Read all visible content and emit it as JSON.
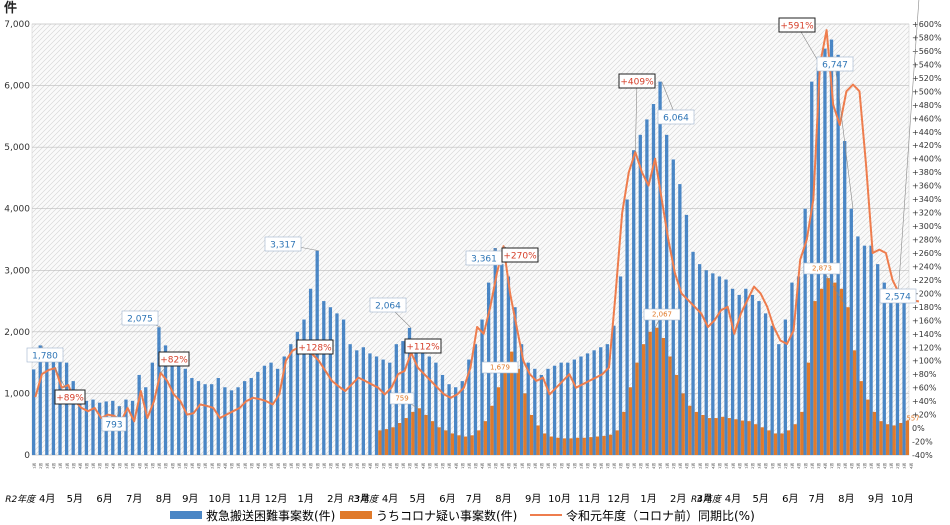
{
  "chart_data": {
    "type": "bar",
    "unit_label": "件",
    "y_left": {
      "min": 0,
      "max": 7000,
      "step": 1000
    },
    "y_right": {
      "min": -40,
      "max": 600,
      "step": 20
    },
    "fiscal_year_labels": [
      "R2年度",
      "R3年度",
      "R4年度"
    ],
    "months": [
      {
        "label": "4月",
        "start": 0,
        "weeks": 4,
        "fy": "R2年度"
      },
      {
        "label": "5月",
        "start": 4,
        "weeks": 5
      },
      {
        "label": "6月",
        "start": 9,
        "weeks": 4
      },
      {
        "label": "7月",
        "start": 13,
        "weeks": 5
      },
      {
        "label": "8月",
        "start": 18,
        "weeks": 4
      },
      {
        "label": "9月",
        "start": 22,
        "weeks": 4
      },
      {
        "label": "10月",
        "start": 26,
        "weeks": 5
      },
      {
        "label": "11月",
        "start": 31,
        "weeks": 4
      },
      {
        "label": "12月",
        "start": 35,
        "weeks": 4
      },
      {
        "label": "1月",
        "start": 39,
        "weeks": 5
      },
      {
        "label": "2月",
        "start": 44,
        "weeks": 4
      },
      {
        "label": "3月",
        "start": 48,
        "weeks": 4
      },
      {
        "label": "4月",
        "start": 52,
        "weeks": 4,
        "fy": "R3年度"
      },
      {
        "label": "5月",
        "start": 56,
        "weeks": 5
      },
      {
        "label": "6月",
        "start": 61,
        "weeks": 4
      },
      {
        "label": "7月",
        "start": 65,
        "weeks": 4
      },
      {
        "label": "8月",
        "start": 69,
        "weeks": 5
      },
      {
        "label": "9月",
        "start": 74,
        "weeks": 4
      },
      {
        "label": "10月",
        "start": 78,
        "weeks": 4
      },
      {
        "label": "11月",
        "start": 82,
        "weeks": 5
      },
      {
        "label": "12月",
        "start": 87,
        "weeks": 4
      },
      {
        "label": "1月",
        "start": 91,
        "weeks": 5
      },
      {
        "label": "2月",
        "start": 96,
        "weeks": 4
      },
      {
        "label": "3月",
        "start": 100,
        "weeks": 4
      },
      {
        "label": "4月",
        "start": 104,
        "weeks": 4,
        "fy": "R4年度"
      },
      {
        "label": "5月",
        "start": 108,
        "weeks": 5
      },
      {
        "label": "6月",
        "start": 113,
        "weeks": 4
      },
      {
        "label": "7月",
        "start": 117,
        "weeks": 4
      },
      {
        "label": "8月",
        "start": 121,
        "weeks": 5
      },
      {
        "label": "9月",
        "start": 126,
        "weeks": 4
      },
      {
        "label": "10月",
        "start": 130,
        "weeks": 4
      }
    ],
    "series": [
      {
        "name": "救急搬送困難事案数(件)",
        "kind": "bar",
        "color": "#4a86c5",
        "axis": "left",
        "values": [
          1390,
          1780,
          1700,
          1650,
          1600,
          1500,
          1200,
          950,
          880,
          900,
          850,
          870,
          880,
          793,
          900,
          880,
          1300,
          1100,
          1500,
          2075,
          1780,
          1650,
          1500,
          1400,
          1250,
          1200,
          1150,
          1150,
          1250,
          1100,
          1050,
          1100,
          1200,
          1250,
          1350,
          1450,
          1500,
          1400,
          1600,
          1800,
          2000,
          2200,
          2700,
          3317,
          2500,
          2400,
          2300,
          2200,
          1800,
          1700,
          1750,
          1650,
          1600,
          1550,
          1500,
          1800,
          1850,
          2064,
          1800,
          1700,
          1600,
          1500,
          1300,
          1150,
          1100,
          1200,
          1550,
          1800,
          2200,
          2800,
          3361,
          3100,
          2900,
          2400,
          1800,
          1500,
          1400,
          1300,
          1400,
          1450,
          1500,
          1500,
          1550,
          1600,
          1650,
          1700,
          1750,
          1800,
          2100,
          2900,
          4150,
          4950,
          5200,
          5450,
          5700,
          6064,
          5200,
          4800,
          4400,
          3900,
          3300,
          3100,
          3000,
          2950,
          2900,
          2850,
          2700,
          2600,
          2700,
          2600,
          2500,
          2300,
          2100,
          1800,
          2200,
          2800,
          2900,
          4000,
          6064,
          6300,
          6600,
          6747,
          6500,
          5100,
          4000,
          3550,
          3400,
          3400,
          3100,
          2800,
          2700,
          2700,
          2574
        ]
      },
      {
        "name": "うちコロナ疑い事案数(件)",
        "kind": "bar",
        "color": "#e07a2a",
        "axis": "left",
        "values": [
          0,
          0,
          0,
          0,
          0,
          0,
          0,
          0,
          0,
          0,
          0,
          0,
          0,
          0,
          0,
          0,
          0,
          0,
          0,
          0,
          0,
          0,
          0,
          0,
          0,
          0,
          0,
          0,
          0,
          0,
          0,
          0,
          0,
          0,
          0,
          0,
          0,
          0,
          0,
          0,
          0,
          0,
          0,
          0,
          0,
          0,
          0,
          0,
          0,
          0,
          0,
          0,
          400,
          420,
          450,
          520,
          600,
          700,
          759,
          650,
          550,
          450,
          400,
          350,
          320,
          300,
          320,
          400,
          550,
          800,
          1100,
          1500,
          1679,
          1400,
          1000,
          650,
          480,
          350,
          300,
          280,
          270,
          270,
          280,
          280,
          290,
          300,
          310,
          330,
          400,
          700,
          1100,
          1500,
          1800,
          2000,
          2067,
          1900,
          1600,
          1300,
          1000,
          800,
          700,
          650,
          600,
          600,
          620,
          600,
          580,
          560,
          550,
          500,
          450,
          400,
          350,
          350,
          400,
          500,
          700,
          1500,
          2500,
          2700,
          2873,
          2800,
          2700,
          2400,
          1700,
          1200,
          900,
          700,
          550,
          500,
          480,
          520,
          557
        ]
      },
      {
        "name": "令和元年度（コロナ前）同期比(%)",
        "kind": "line",
        "color": "#ee7d4e",
        "axis": "right",
        "values": [
          46,
          80,
          86,
          89,
          60,
          64,
          40,
          30,
          25,
          30,
          15,
          20,
          18,
          10,
          30,
          10,
          55,
          15,
          40,
          82,
          70,
          50,
          40,
          20,
          22,
          35,
          33,
          30,
          15,
          20,
          25,
          30,
          40,
          45,
          43,
          40,
          35,
          50,
          100,
          115,
          120,
          128,
          110,
          100,
          85,
          70,
          62,
          55,
          65,
          75,
          70,
          65,
          60,
          50,
          60,
          80,
          85,
          112,
          90,
          80,
          70,
          60,
          50,
          45,
          50,
          60,
          90,
          150,
          140,
          180,
          230,
          270,
          200,
          150,
          100,
          80,
          70,
          75,
          50,
          60,
          70,
          80,
          60,
          65,
          70,
          75,
          80,
          90,
          200,
          320,
          380,
          410,
          380,
          360,
          400,
          340,
          280,
          230,
          200,
          190,
          180,
          170,
          150,
          160,
          175,
          180,
          140,
          170,
          190,
          210,
          200,
          180,
          150,
          130,
          125,
          145,
          250,
          280,
          340,
          540,
          591,
          480,
          450,
          500,
          510,
          500,
          390,
          260,
          265,
          260,
          220,
          200,
          195,
          190,
          188
        ]
      }
    ],
    "callouts": [
      {
        "text": "1,780",
        "color": "blue"
      },
      {
        "text": "+89%",
        "color": "red"
      },
      {
        "text": "793",
        "color": "blue"
      },
      {
        "text": "2,075",
        "color": "blue"
      },
      {
        "text": "+82%",
        "color": "red"
      },
      {
        "text": "3,317",
        "color": "blue"
      },
      {
        "text": "+128%",
        "color": "red"
      },
      {
        "text": "2,064",
        "color": "blue"
      },
      {
        "text": "+112%",
        "color": "red"
      },
      {
        "text": "759",
        "color": "orange"
      },
      {
        "text": "3,361",
        "color": "blue"
      },
      {
        "text": "+270%",
        "color": "red"
      },
      {
        "text": "1,679",
        "color": "orange"
      },
      {
        "text": "+409%",
        "color": "red"
      },
      {
        "text": "6,064",
        "color": "blue"
      },
      {
        "text": "2,067",
        "color": "orange"
      },
      {
        "text": "+591%",
        "color": "red"
      },
      {
        "text": "6,747",
        "color": "blue"
      },
      {
        "text": "2,873",
        "color": "orange"
      },
      {
        "text": "2,574",
        "color": "blue"
      },
      {
        "text": "557",
        "color": "orange"
      }
    ],
    "legend": [
      "救急搬送困難事案数(件)",
      "うちコロナ疑い事案数(件)",
      "令和元年度（コロナ前）同期比(%)"
    ],
    "legend_position": "bottom"
  }
}
